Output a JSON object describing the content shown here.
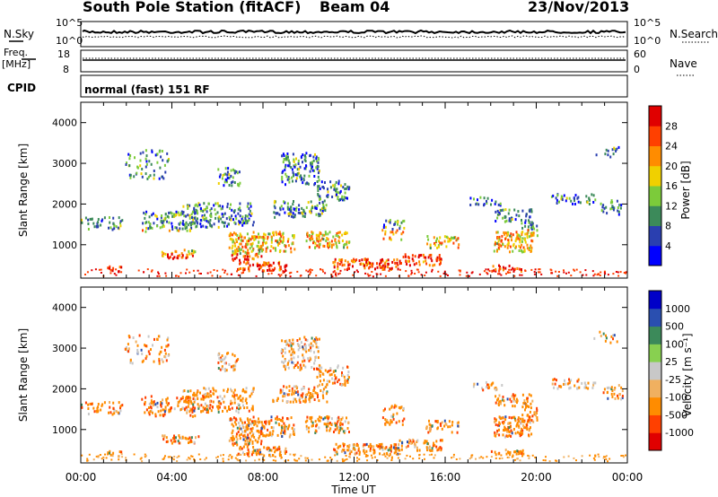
{
  "header": {
    "title": "South Pole Station (fitACF)",
    "beam": "Beam 04",
    "date": "23/Nov/2013"
  },
  "top_panel": {
    "left_label": "N.Sky",
    "right_label": "N.Search",
    "ticks_left": [
      "10^5",
      "10^0"
    ],
    "ticks_right": [
      "10^5",
      "10^0"
    ]
  },
  "freq_panel": {
    "left_label_1": "Freq.",
    "left_label_2": "[MHz]",
    "right_label": "Nave",
    "ticks_left": [
      "18",
      "8"
    ],
    "ticks_right": [
      "60",
      "0"
    ]
  },
  "cpid": {
    "label": "CPID",
    "value": "normal (fast) 151 RF"
  },
  "colors": {
    "power_bar": [
      "#0000ff",
      "#2a3fb0",
      "#3c8a5a",
      "#7ccb3a",
      "#f0d000",
      "#ff8c00",
      "#ff4000",
      "#e00000"
    ],
    "velocity_bar": [
      "#e00000",
      "#ff4000",
      "#ff8c00",
      "#f0b060",
      "#c8c8c8",
      "#88d050",
      "#3c8a5a",
      "#2a4fb0",
      "#0000c8"
    ]
  },
  "chart_data": [
    {
      "type": "heatmap",
      "title": "Power",
      "ylabel": "Slant Range [km]",
      "xlabel": "",
      "x_ticks": [
        "00:00",
        "04:00",
        "08:00",
        "12:00",
        "16:00",
        "20:00",
        "00:00"
      ],
      "y_ticks": [
        1000,
        2000,
        3000,
        4000
      ],
      "ylim": [
        180,
        4500
      ],
      "colorbar": {
        "label": "Power [dB]",
        "ticks": [
          4,
          8,
          12,
          16,
          20,
          24,
          28
        ]
      }
    },
    {
      "type": "heatmap",
      "title": "Velocity",
      "ylabel": "Slant Range [km]",
      "xlabel": "Time UT",
      "x_ticks": [
        "00:00",
        "04:00",
        "08:00",
        "12:00",
        "16:00",
        "20:00",
        "00:00"
      ],
      "y_ticks": [
        1000,
        2000,
        3000,
        4000
      ],
      "ylim": [
        180,
        4500
      ],
      "colorbar": {
        "label": "Velocity [m s⁻¹]",
        "ticks": [
          1000,
          500,
          100,
          25,
          -25,
          -100,
          -500,
          -1000
        ]
      }
    }
  ]
}
